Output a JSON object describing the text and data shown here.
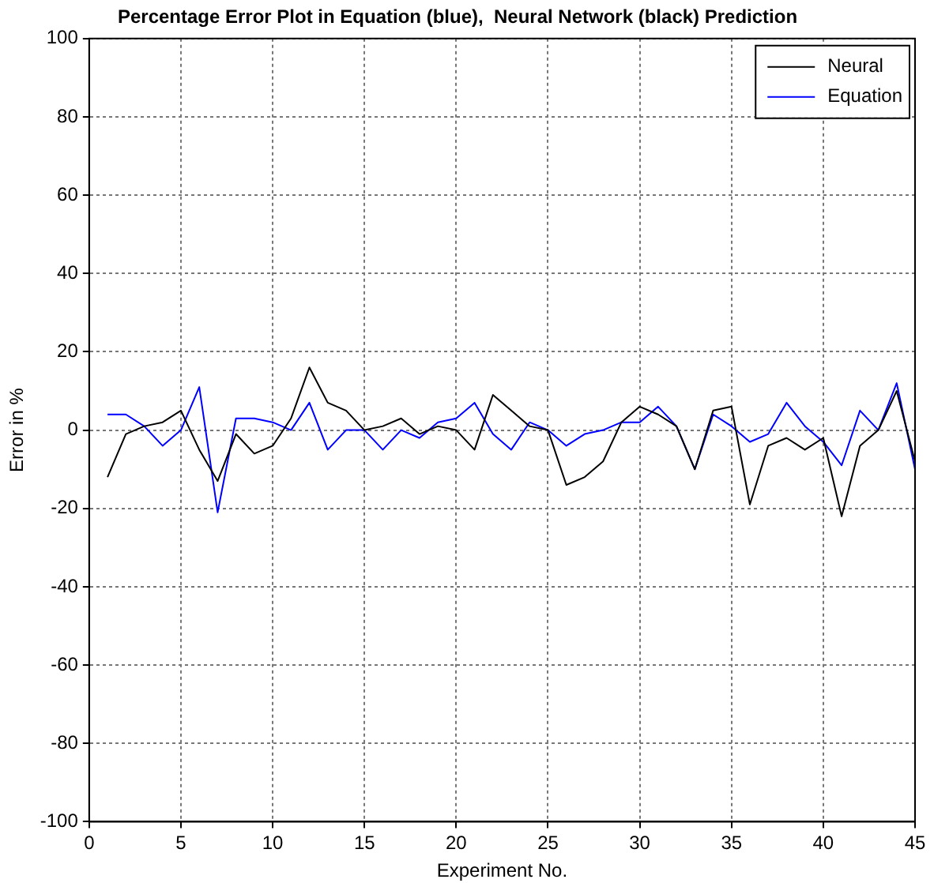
{
  "chart_data": {
    "type": "line",
    "title": "Percentage Error Plot in Equation (blue),  Neural Network (black) Prediction",
    "xlabel": "Experiment No.",
    "ylabel": "Error in %",
    "x": [
      1,
      2,
      3,
      4,
      5,
      6,
      7,
      8,
      9,
      10,
      11,
      12,
      13,
      14,
      15,
      16,
      17,
      18,
      19,
      20,
      21,
      22,
      23,
      24,
      25,
      26,
      27,
      28,
      29,
      30,
      31,
      32,
      33,
      34,
      35,
      36,
      37,
      38,
      39,
      40,
      41,
      42,
      43,
      44,
      45
    ],
    "series": [
      {
        "name": "Neural",
        "color": "#000000",
        "values": [
          -12,
          -1,
          1,
          2,
          5,
          -5,
          -13,
          -1,
          -6,
          -4,
          3,
          16,
          7,
          5,
          0,
          1,
          3,
          -1,
          1,
          0,
          -5,
          9,
          5,
          1,
          0,
          -14,
          -12,
          -8,
          2,
          6,
          4,
          1,
          -10,
          5,
          6,
          -19,
          -4,
          -2,
          -5,
          -2,
          -22,
          -4,
          0,
          10,
          -8
        ]
      },
      {
        "name": "Equation",
        "color": "#0000ff",
        "values": [
          4,
          4,
          1,
          -4,
          0,
          11,
          -21,
          3,
          3,
          2,
          0,
          7,
          -5,
          0,
          0,
          -5,
          0,
          -2,
          2,
          3,
          7,
          -1,
          -5,
          2,
          0,
          -4,
          -1,
          0,
          2,
          2,
          6,
          1,
          -10,
          4,
          1,
          -3,
          -1,
          7,
          1,
          -3,
          -9,
          5,
          0,
          12,
          -10
        ]
      }
    ],
    "xlim": [
      0,
      45
    ],
    "xticks": [
      0,
      5,
      10,
      15,
      20,
      25,
      30,
      35,
      40,
      45
    ],
    "ylim": [
      -100,
      100
    ],
    "yticks": [
      -100,
      -80,
      -60,
      -40,
      -20,
      0,
      20,
      40,
      60,
      80,
      100
    ],
    "grid": true,
    "legend": "top right",
    "marker": "none",
    "line_style": "solid"
  }
}
